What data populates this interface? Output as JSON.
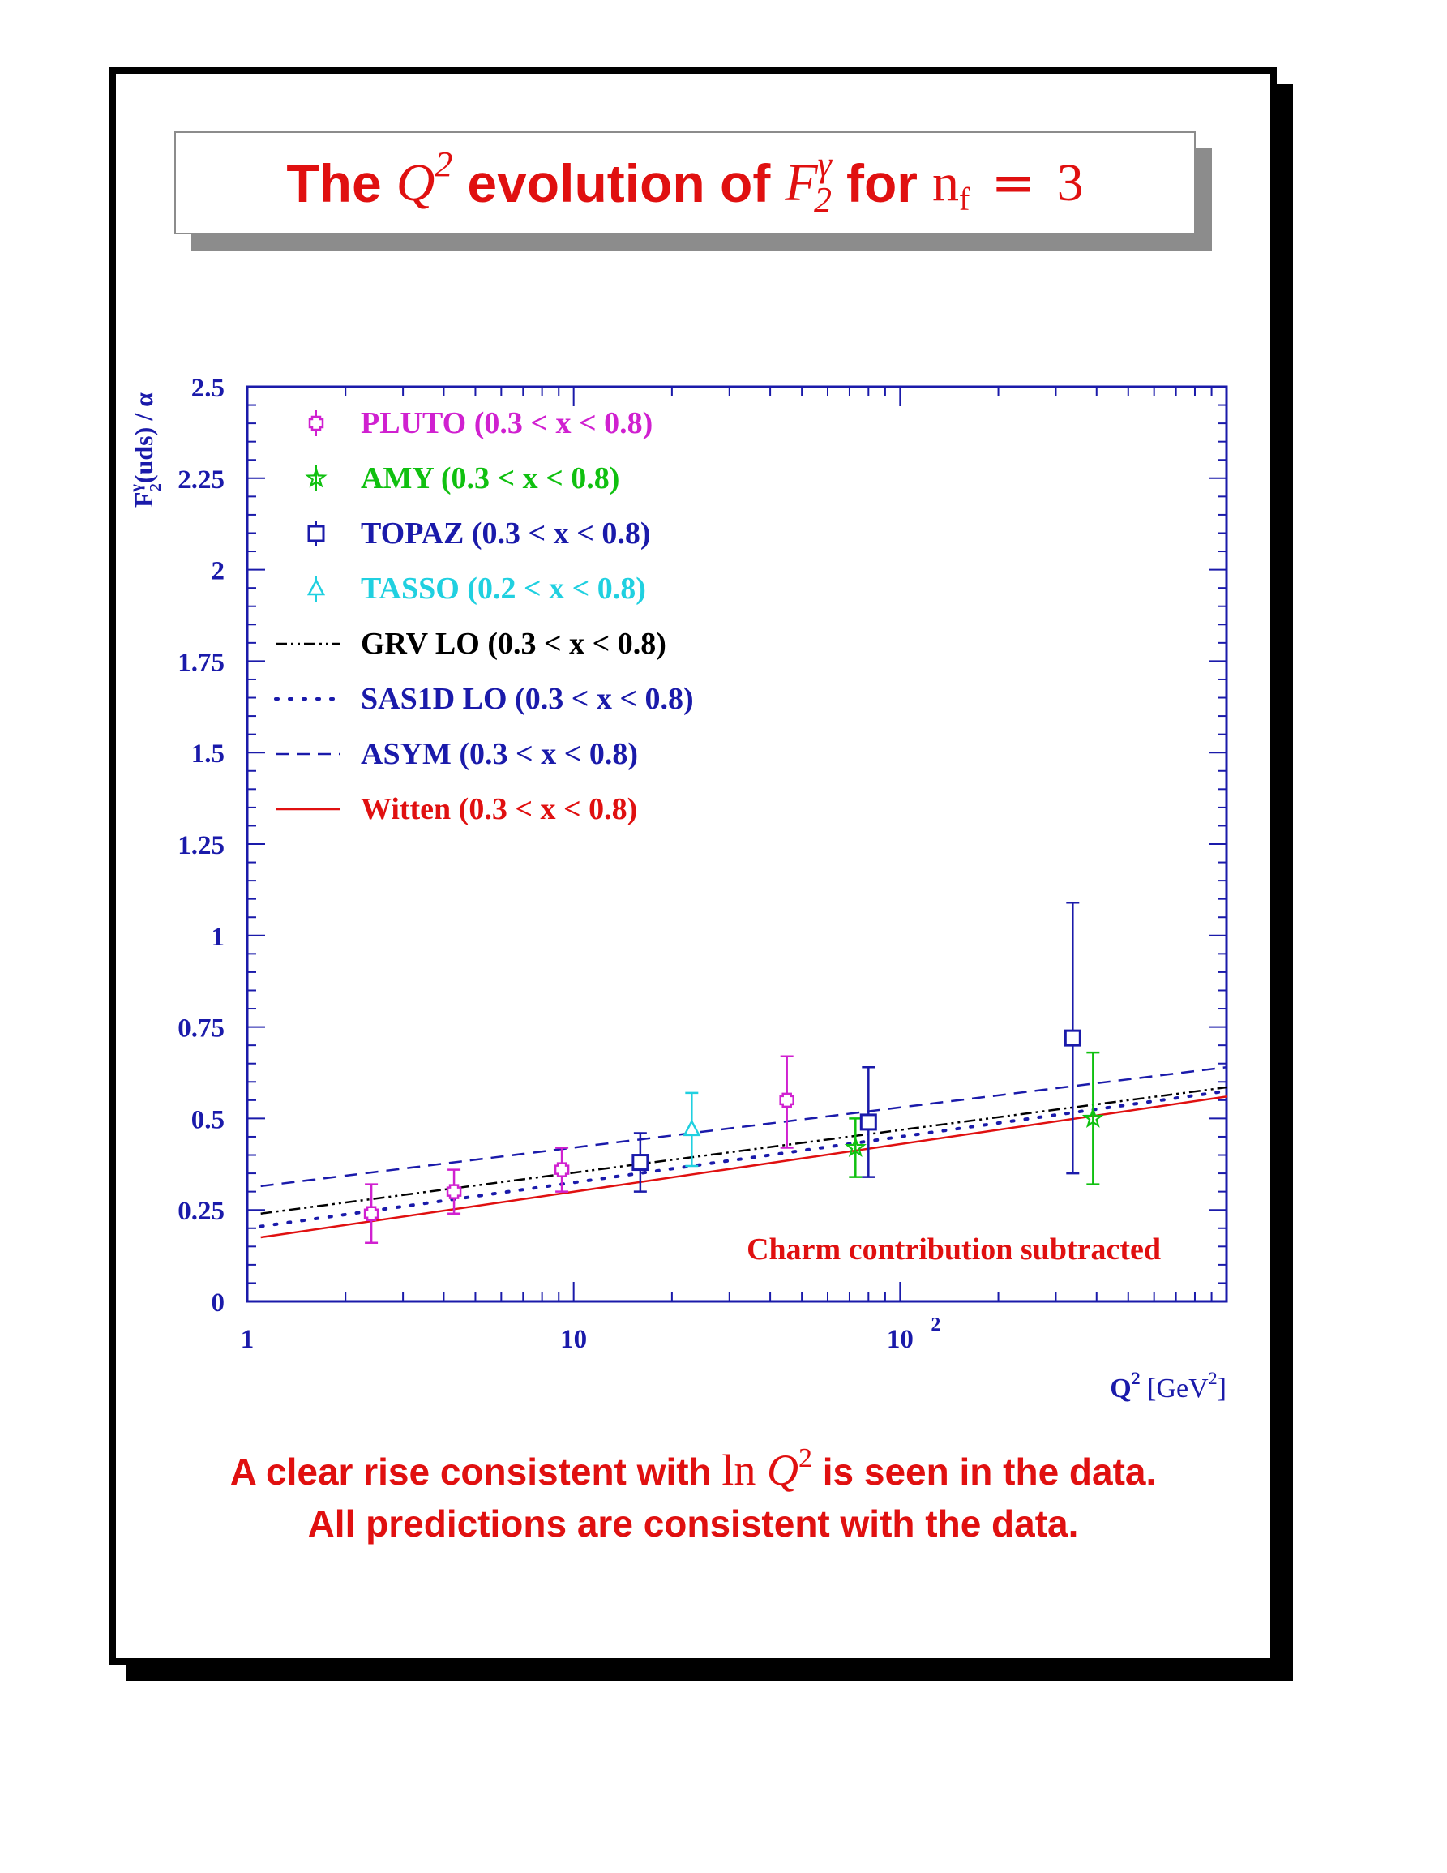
{
  "title": {
    "prefix": "The",
    "q": "Q",
    "q_sup": "2",
    "middle": "evolution of",
    "f": "F",
    "f_sup": "γ",
    "f_sub": "2",
    "for": "for",
    "n": "n",
    "n_sub": "f",
    "eq": "=",
    "value": "3"
  },
  "caption": {
    "line1_a": "A clear rise consistent with",
    "ln": "ln",
    "q": "Q",
    "q_sup": "2",
    "line1_b": "is seen in the data.",
    "line2": "All predictions are consistent with the data."
  },
  "colors": {
    "axis": "#1a1aaa",
    "pluto": "#d020d0",
    "amy": "#10c010",
    "topaz": "#1a1aaa",
    "tasso": "#20d0e0",
    "grv": "#000000",
    "sas1d": "#1a1aaa",
    "asym": "#1a1aaa",
    "witten": "#e01010",
    "annotation": "#e01010"
  },
  "chart_data": {
    "type": "scatter",
    "xscale": "log",
    "xlim": [
      1,
      1000
    ],
    "ylim": [
      0,
      2.5
    ],
    "grid": false,
    "legend_position": "top-left",
    "ylabel": {
      "main": "F",
      "sup": "γ",
      "sub": "2",
      "rest": "(uds) / α"
    },
    "xlabel": {
      "main": "Q",
      "sup": "2",
      "rest_a": "[GeV",
      "rest_sup": "2",
      "rest_b": "]"
    },
    "y_ticks": [
      {
        "value": 0,
        "label": "0"
      },
      {
        "value": 0.25,
        "label": "0.25"
      },
      {
        "value": 0.5,
        "label": "0.5"
      },
      {
        "value": 0.75,
        "label": "0.75"
      },
      {
        "value": 1,
        "label": "1"
      },
      {
        "value": 1.25,
        "label": "1.25"
      },
      {
        "value": 1.5,
        "label": "1.5"
      },
      {
        "value": 1.75,
        "label": "1.75"
      },
      {
        "value": 2,
        "label": "2"
      },
      {
        "value": 2.25,
        "label": "2.25"
      },
      {
        "value": 2.5,
        "label": "2.5"
      }
    ],
    "x_ticks": [
      {
        "value": 1,
        "label": "1"
      },
      {
        "value": 10,
        "label": "10"
      },
      {
        "value": 100,
        "label": "10",
        "sup": "2"
      }
    ],
    "annotation": "Charm contribution subtracted",
    "data_series": [
      {
        "key": "pluto",
        "name": "PLUTO (0.3 < x < 0.8)",
        "marker": "cross",
        "points": [
          {
            "x": 2.4,
            "y": 0.24,
            "ylo": 0.16,
            "yhi": 0.32
          },
          {
            "x": 4.3,
            "y": 0.3,
            "ylo": 0.24,
            "yhi": 0.36
          },
          {
            "x": 9.2,
            "y": 0.36,
            "ylo": 0.3,
            "yhi": 0.42
          },
          {
            "x": 45,
            "y": 0.55,
            "ylo": 0.42,
            "yhi": 0.67
          }
        ]
      },
      {
        "key": "amy",
        "name": "AMY (0.3 < x < 0.8)",
        "marker": "star",
        "points": [
          {
            "x": 73,
            "y": 0.42,
            "ylo": 0.34,
            "yhi": 0.5
          },
          {
            "x": 390,
            "y": 0.5,
            "ylo": 0.32,
            "yhi": 0.68
          }
        ]
      },
      {
        "key": "topaz",
        "name": "TOPAZ (0.3 < x < 0.8)",
        "marker": "square",
        "points": [
          {
            "x": 16,
            "y": 0.38,
            "ylo": 0.3,
            "yhi": 0.46
          },
          {
            "x": 80,
            "y": 0.49,
            "ylo": 0.34,
            "yhi": 0.64
          },
          {
            "x": 338,
            "y": 0.72,
            "ylo": 0.35,
            "yhi": 1.09
          }
        ]
      },
      {
        "key": "tasso",
        "name": "TASSO (0.2 < x < 0.8)",
        "marker": "triangle",
        "points": [
          {
            "x": 23,
            "y": 0.47,
            "ylo": 0.37,
            "yhi": 0.57
          }
        ]
      }
    ],
    "curves": [
      {
        "key": "grv",
        "name": "GRV LO (0.3 < x < 0.8)",
        "style": "dashdot",
        "x": [
          1.1,
          1000
        ],
        "y": [
          0.24,
          0.585
        ]
      },
      {
        "key": "sas1d",
        "name": "SAS1D LO (0.3 < x < 0.8)",
        "style": "dotted",
        "x": [
          1.1,
          1000
        ],
        "y": [
          0.205,
          0.575
        ]
      },
      {
        "key": "asym",
        "name": "ASYM (0.3 < x < 0.8)",
        "style": "dashed",
        "x": [
          1.1,
          1000
        ],
        "y": [
          0.315,
          0.64
        ]
      },
      {
        "key": "witten",
        "name": "Witten (0.3 < x < 0.8)",
        "style": "solid",
        "x": [
          1.1,
          1000
        ],
        "y": [
          0.175,
          0.56
        ]
      }
    ]
  }
}
